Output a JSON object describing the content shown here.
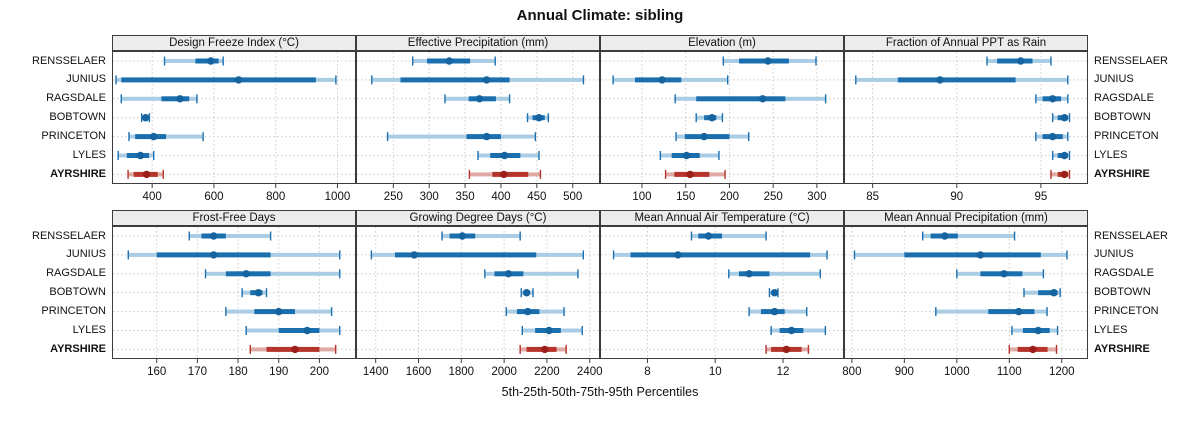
{
  "title": "Annual Climate: sibling",
  "caption": "5th-25th-50th-75th-95th Percentiles",
  "colors": {
    "series_main": "#1b6fae",
    "series_band": "#a9cde4",
    "series_dot": "#15639f",
    "highlight_main": "#b5342c",
    "highlight_band": "#e0aaa5",
    "highlight_dot": "#9d1f1a",
    "strip_bg": "#ececec",
    "border": "#3c3c3c",
    "grid": "#cccccc",
    "text": "#111111"
  },
  "chart_data": {
    "type": "dot-whisker-trellis",
    "percentiles": [
      "5th",
      "25th",
      "50th",
      "75th",
      "95th"
    ],
    "categories": [
      "RENSSELAER",
      "JUNIUS",
      "RAGSDALE",
      "BOBTOWN",
      "PRINCETON",
      "LYLES",
      "AYRSHIRE"
    ],
    "highlight_category": "AYRSHIRE",
    "panels": [
      {
        "title": "Design Freeze Index (°C)",
        "xlim": [
          270,
          1060
        ],
        "xticks": [
          400,
          600,
          800,
          1000
        ],
        "values": [
          [
            440,
            540,
            590,
            615,
            630
          ],
          [
            283,
            300,
            680,
            930,
            995
          ],
          [
            300,
            430,
            490,
            520,
            545
          ],
          [
            366,
            372,
            379,
            385,
            391
          ],
          [
            325,
            345,
            405,
            445,
            565
          ],
          [
            290,
            318,
            362,
            390,
            405
          ],
          [
            322,
            340,
            382,
            418,
            436
          ]
        ]
      },
      {
        "title": "Effective Precipitation (mm)",
        "xlim": [
          198,
          538
        ],
        "xticks": [
          250,
          300,
          350,
          400,
          450,
          500
        ],
        "values": [
          [
            277,
            297,
            328,
            357,
            392
          ],
          [
            220,
            260,
            380,
            412,
            515
          ],
          [
            322,
            355,
            370,
            393,
            412
          ],
          [
            437,
            444,
            453,
            461,
            466
          ],
          [
            242,
            352,
            380,
            400,
            448
          ],
          [
            368,
            385,
            405,
            427,
            453
          ],
          [
            356,
            388,
            404,
            438,
            455
          ]
        ]
      },
      {
        "title": "Elevation (m)",
        "xlim": [
          52,
          331
        ],
        "xticks": [
          100,
          150,
          200,
          250,
          300
        ],
        "values": [
          [
            193,
            211,
            244,
            268,
            299
          ],
          [
            67,
            92,
            123,
            145,
            198
          ],
          [
            138,
            162,
            238,
            264,
            310
          ],
          [
            162,
            171,
            180,
            185,
            192
          ],
          [
            139,
            149,
            171,
            200,
            222
          ],
          [
            121,
            134,
            151,
            166,
            188
          ],
          [
            127,
            137,
            155,
            177,
            195
          ]
        ]
      },
      {
        "title": "Fraction of Annual PPT as Rain",
        "xlim": [
          83.3,
          97.8
        ],
        "xticks": [
          85,
          90,
          95
        ],
        "values": [
          [
            91.8,
            92.4,
            93.8,
            94.5,
            95.6
          ],
          [
            84.0,
            86.5,
            89.0,
            93.5,
            96.6
          ],
          [
            94.7,
            95.1,
            95.7,
            96.2,
            96.6
          ],
          [
            95.7,
            96.0,
            96.4,
            96.6,
            96.7
          ],
          [
            94.7,
            95.1,
            95.7,
            96.3,
            96.6
          ],
          [
            95.7,
            96.0,
            96.4,
            96.6,
            96.7
          ],
          [
            95.6,
            96.0,
            96.4,
            96.6,
            96.7
          ]
        ]
      },
      {
        "title": "Frost-Free Days",
        "xlim": [
          149,
          209
        ],
        "xticks": [
          160,
          170,
          180,
          190,
          200
        ],
        "values": [
          [
            168,
            171,
            174,
            177,
            188
          ],
          [
            153,
            160,
            174,
            188,
            205
          ],
          [
            172,
            177,
            182,
            188,
            205
          ],
          [
            181,
            183,
            185,
            186,
            187
          ],
          [
            177,
            184,
            190,
            194,
            203
          ],
          [
            182,
            190,
            197,
            200,
            205
          ],
          [
            183,
            187,
            194,
            200,
            204
          ]
        ]
      },
      {
        "title": "Growing Degree Days (°C)",
        "xlim": [
          1308,
          2448
        ],
        "xticks": [
          1400,
          1600,
          1800,
          2000,
          2200,
          2400
        ],
        "values": [
          [
            1710,
            1745,
            1805,
            1865,
            2075
          ],
          [
            1380,
            1490,
            1580,
            2150,
            2370
          ],
          [
            1910,
            1955,
            2020,
            2090,
            2345
          ],
          [
            2080,
            2095,
            2105,
            2120,
            2135
          ],
          [
            2010,
            2060,
            2110,
            2165,
            2280
          ],
          [
            2085,
            2145,
            2210,
            2265,
            2365
          ],
          [
            2075,
            2105,
            2190,
            2245,
            2290
          ]
        ]
      },
      {
        "title": "Mean Annual Air Temperature (°C)",
        "xlim": [
          6.6,
          13.8
        ],
        "xticks": [
          8,
          10,
          12
        ],
        "values": [
          [
            9.3,
            9.5,
            9.8,
            10.2,
            11.5
          ],
          [
            7.0,
            7.5,
            8.9,
            12.8,
            13.3
          ],
          [
            10.4,
            10.7,
            11.0,
            11.6,
            13.1
          ],
          [
            11.6,
            11.68,
            11.75,
            11.8,
            11.85
          ],
          [
            11.0,
            11.35,
            11.75,
            12.05,
            12.7
          ],
          [
            11.65,
            11.9,
            12.25,
            12.6,
            13.25
          ],
          [
            11.5,
            11.65,
            12.1,
            12.55,
            12.75
          ]
        ]
      },
      {
        "title": "Mean Annual Precipitation (mm)",
        "xlim": [
          785,
          1250
        ],
        "xticks": [
          800,
          900,
          1000,
          1100,
          1200
        ],
        "values": [
          [
            935,
            950,
            977,
            1002,
            1110
          ],
          [
            805,
            900,
            1045,
            1160,
            1210
          ],
          [
            1000,
            1045,
            1090,
            1125,
            1165
          ],
          [
            1128,
            1155,
            1185,
            1192,
            1197
          ],
          [
            960,
            1060,
            1118,
            1148,
            1172
          ],
          [
            1105,
            1126,
            1155,
            1177,
            1192
          ],
          [
            1100,
            1116,
            1145,
            1173,
            1190
          ]
        ]
      }
    ]
  }
}
